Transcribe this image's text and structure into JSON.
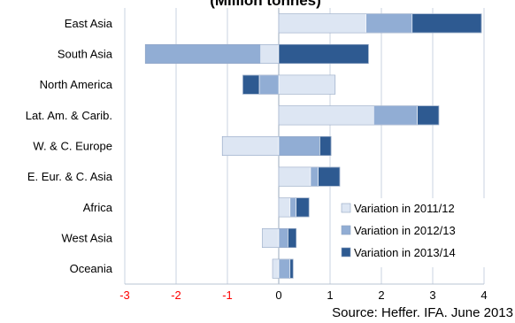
{
  "chart_data": {
    "type": "bar",
    "orientation": "horizontal",
    "stacked": true,
    "title": "(Million tonnes)",
    "source": "Source: Heffer. IFA. June 2013",
    "categories": [
      "East Asia",
      "South Asia",
      "North America",
      "Lat. Am. & Carib.",
      "W. & C. Europe",
      "E. Eur. & C. Asia",
      "Africa",
      "West Asia",
      "Oceania"
    ],
    "series": [
      {
        "name": "Variation in 2011/12",
        "color": "#dde6f3",
        "values": [
          1.7,
          -0.35,
          1.1,
          1.85,
          -1.1,
          0.62,
          0.22,
          -0.32,
          -0.12
        ]
      },
      {
        "name": "Variation in 2012/13",
        "color": "#91add4",
        "values": [
          0.9,
          -2.25,
          -0.38,
          0.85,
          0.8,
          0.15,
          0.12,
          0.18,
          0.22
        ]
      },
      {
        "name": "Variation in 2013/14",
        "color": "#2e5a91",
        "values": [
          1.35,
          1.75,
          -0.32,
          0.42,
          0.22,
          0.42,
          0.25,
          0.16,
          0.06
        ]
      }
    ],
    "xlim": [
      -3,
      4
    ],
    "xticks": [
      -3,
      -2,
      -1,
      0,
      1,
      2,
      3,
      4
    ],
    "negative_tick_color": "#ff0000",
    "grid": "vertical",
    "legend_position": "bottom-right"
  }
}
